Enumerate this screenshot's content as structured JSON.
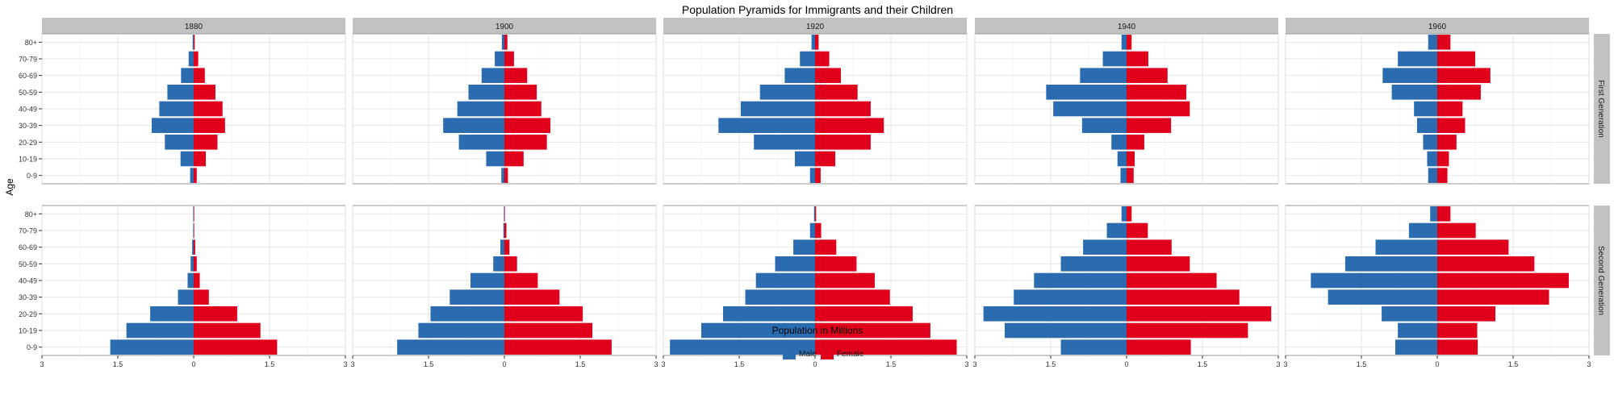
{
  "chart_data": {
    "type": "bar",
    "orientation": "horizontal",
    "layout": "population-pyramid small multiples",
    "title": "Population Pyramids for Immigrants and their Children",
    "xlabel": "Population in Millions",
    "ylabel": "Age",
    "x_tick_labels": [
      "3",
      "1.5",
      "0",
      "1.5",
      "3"
    ],
    "xlim": [
      -3,
      3
    ],
    "age_groups": [
      "0-9",
      "10-19",
      "20-29",
      "30-39",
      "40-49",
      "50-59",
      "60-69",
      "70-79",
      "80+"
    ],
    "years": [
      "1880",
      "1900",
      "1920",
      "1940",
      "1960"
    ],
    "generations": [
      "First Generation",
      "Second Generation"
    ],
    "grid": true,
    "legend_position": "bottom",
    "series": [
      {
        "name": "Male",
        "color": "#2b6cb0"
      },
      {
        "name": "Female",
        "color": "#e0001b"
      }
    ],
    "panels": {
      "First Generation": {
        "1880": {
          "male": [
            0.07,
            0.26,
            0.57,
            0.83,
            0.68,
            0.52,
            0.25,
            0.1,
            0.02
          ],
          "female": [
            0.06,
            0.24,
            0.47,
            0.62,
            0.57,
            0.43,
            0.22,
            0.09,
            0.02
          ]
        },
        "1900": {
          "male": [
            0.06,
            0.36,
            0.9,
            1.21,
            0.93,
            0.71,
            0.45,
            0.19,
            0.05
          ],
          "female": [
            0.07,
            0.38,
            0.84,
            0.91,
            0.73,
            0.64,
            0.45,
            0.19,
            0.06
          ]
        },
        "1920": {
          "male": [
            0.1,
            0.4,
            1.21,
            1.91,
            1.47,
            1.09,
            0.6,
            0.3,
            0.07
          ],
          "female": [
            0.11,
            0.4,
            1.1,
            1.36,
            1.1,
            0.84,
            0.51,
            0.28,
            0.07
          ]
        },
        "1940": {
          "male": [
            0.12,
            0.18,
            0.3,
            0.88,
            1.45,
            1.59,
            0.92,
            0.47,
            0.1
          ],
          "female": [
            0.14,
            0.16,
            0.35,
            0.88,
            1.25,
            1.18,
            0.81,
            0.43,
            0.1
          ]
        },
        "1960": {
          "male": [
            0.18,
            0.2,
            0.28,
            0.4,
            0.46,
            0.9,
            1.08,
            0.78,
            0.18
          ],
          "female": [
            0.2,
            0.23,
            0.38,
            0.55,
            0.5,
            0.86,
            1.05,
            0.75,
            0.26
          ]
        }
      },
      "Second Generation": {
        "1880": {
          "male": [
            1.65,
            1.33,
            0.86,
            0.31,
            0.12,
            0.06,
            0.03,
            0.01,
            0.01
          ],
          "female": [
            1.65,
            1.32,
            0.86,
            0.3,
            0.12,
            0.06,
            0.03,
            0.01,
            0.01
          ]
        },
        "1900": {
          "male": [
            2.12,
            1.7,
            1.46,
            1.08,
            0.67,
            0.22,
            0.08,
            0.02,
            0.01
          ],
          "female": [
            2.12,
            1.74,
            1.55,
            1.09,
            0.66,
            0.25,
            0.1,
            0.04,
            0.01
          ]
        },
        "1920": {
          "male": [
            2.87,
            2.25,
            1.82,
            1.38,
            1.17,
            0.79,
            0.43,
            0.1,
            0.02
          ],
          "female": [
            2.8,
            2.28,
            1.93,
            1.48,
            1.18,
            0.82,
            0.42,
            0.12,
            0.02
          ]
        },
        "1940": {
          "male": [
            1.3,
            2.41,
            2.83,
            2.23,
            1.83,
            1.3,
            0.86,
            0.39,
            0.1
          ],
          "female": [
            1.27,
            2.4,
            2.86,
            2.23,
            1.78,
            1.25,
            0.89,
            0.42,
            0.1
          ]
        },
        "1960": {
          "male": [
            0.83,
            0.78,
            1.1,
            2.16,
            2.5,
            1.82,
            1.22,
            0.56,
            0.14
          ],
          "female": [
            0.8,
            0.79,
            1.15,
            2.21,
            2.6,
            1.92,
            1.41,
            0.76,
            0.26
          ]
        }
      }
    }
  }
}
